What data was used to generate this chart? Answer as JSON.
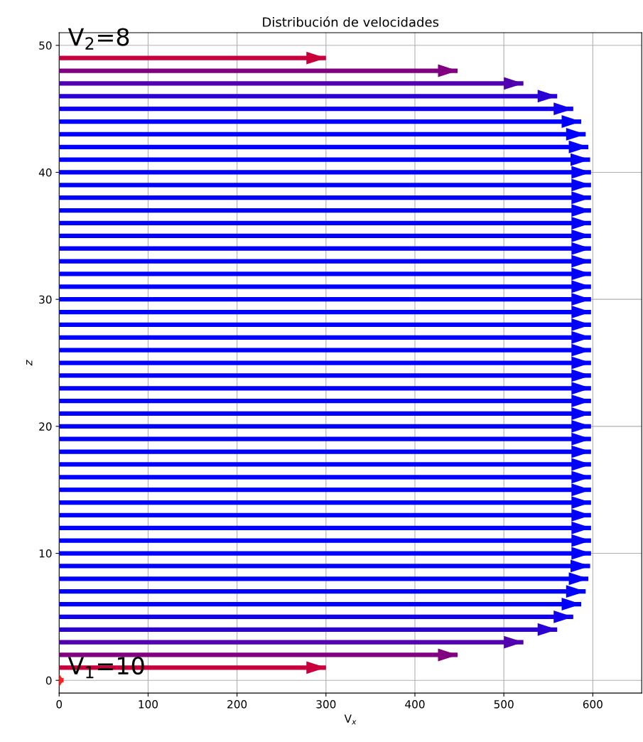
{
  "chart_data": {
    "type": "bar",
    "orientation": "horizontal",
    "title": "Distribución de velocidades",
    "xlabel": "V$_{x}$",
    "ylabel": "z",
    "x": [
      0,
      1,
      2,
      3,
      4,
      5,
      6,
      7,
      8,
      9,
      10,
      11,
      12,
      13,
      14,
      15,
      16,
      17,
      18,
      19,
      20,
      21,
      22,
      23,
      24,
      25,
      26,
      27,
      28,
      29,
      30,
      31,
      32,
      33,
      34,
      35,
      36,
      37,
      38,
      39,
      40,
      41,
      42,
      43,
      44,
      45,
      46,
      47,
      48,
      49
    ],
    "values": [
      5,
      300,
      448,
      522,
      560,
      578,
      587,
      592,
      595,
      597,
      598,
      598,
      598,
      598,
      598,
      598,
      598,
      598,
      598,
      598,
      598,
      598,
      598,
      598,
      598,
      598,
      598,
      598,
      598,
      598,
      598,
      598,
      598,
      598,
      598,
      598,
      598,
      598,
      598,
      598,
      598,
      597,
      595,
      592,
      587,
      578,
      560,
      522,
      448,
      300
    ],
    "colors": [
      "#ff2020",
      "#c8003c",
      "#800080",
      "#5000b0",
      "#2a00d5",
      "#1000ef",
      "#0000ff",
      "#0000ff",
      "#0000ff",
      "#0000ff",
      "#0000ff",
      "#0000ff",
      "#0000ff",
      "#0000ff",
      "#0000ff",
      "#0000ff",
      "#0000ff",
      "#0000ff",
      "#0000ff",
      "#0000ff",
      "#0000ff",
      "#0000ff",
      "#0000ff",
      "#0000ff",
      "#0000ff",
      "#0000ff",
      "#0000ff",
      "#0000ff",
      "#0000ff",
      "#0000ff",
      "#0000ff",
      "#0000ff",
      "#0000ff",
      "#0000ff",
      "#0000ff",
      "#0000ff",
      "#0000ff",
      "#0000ff",
      "#0000ff",
      "#0000ff",
      "#0000ff",
      "#0000ff",
      "#0000ff",
      "#0000ff",
      "#0000ff",
      "#1000ef",
      "#2a00d5",
      "#5000b0",
      "#800080",
      "#c8003c"
    ],
    "xlim": [
      0,
      655
    ],
    "xticks": [
      0,
      100,
      200,
      300,
      400,
      500,
      600
    ],
    "ylim": [
      -1,
      51
    ],
    "yticks": [
      0,
      10,
      20,
      30,
      40,
      50
    ],
    "grid": true,
    "annotations": [
      "V$_{1}$=10",
      "V$_{2}$=8"
    ]
  }
}
